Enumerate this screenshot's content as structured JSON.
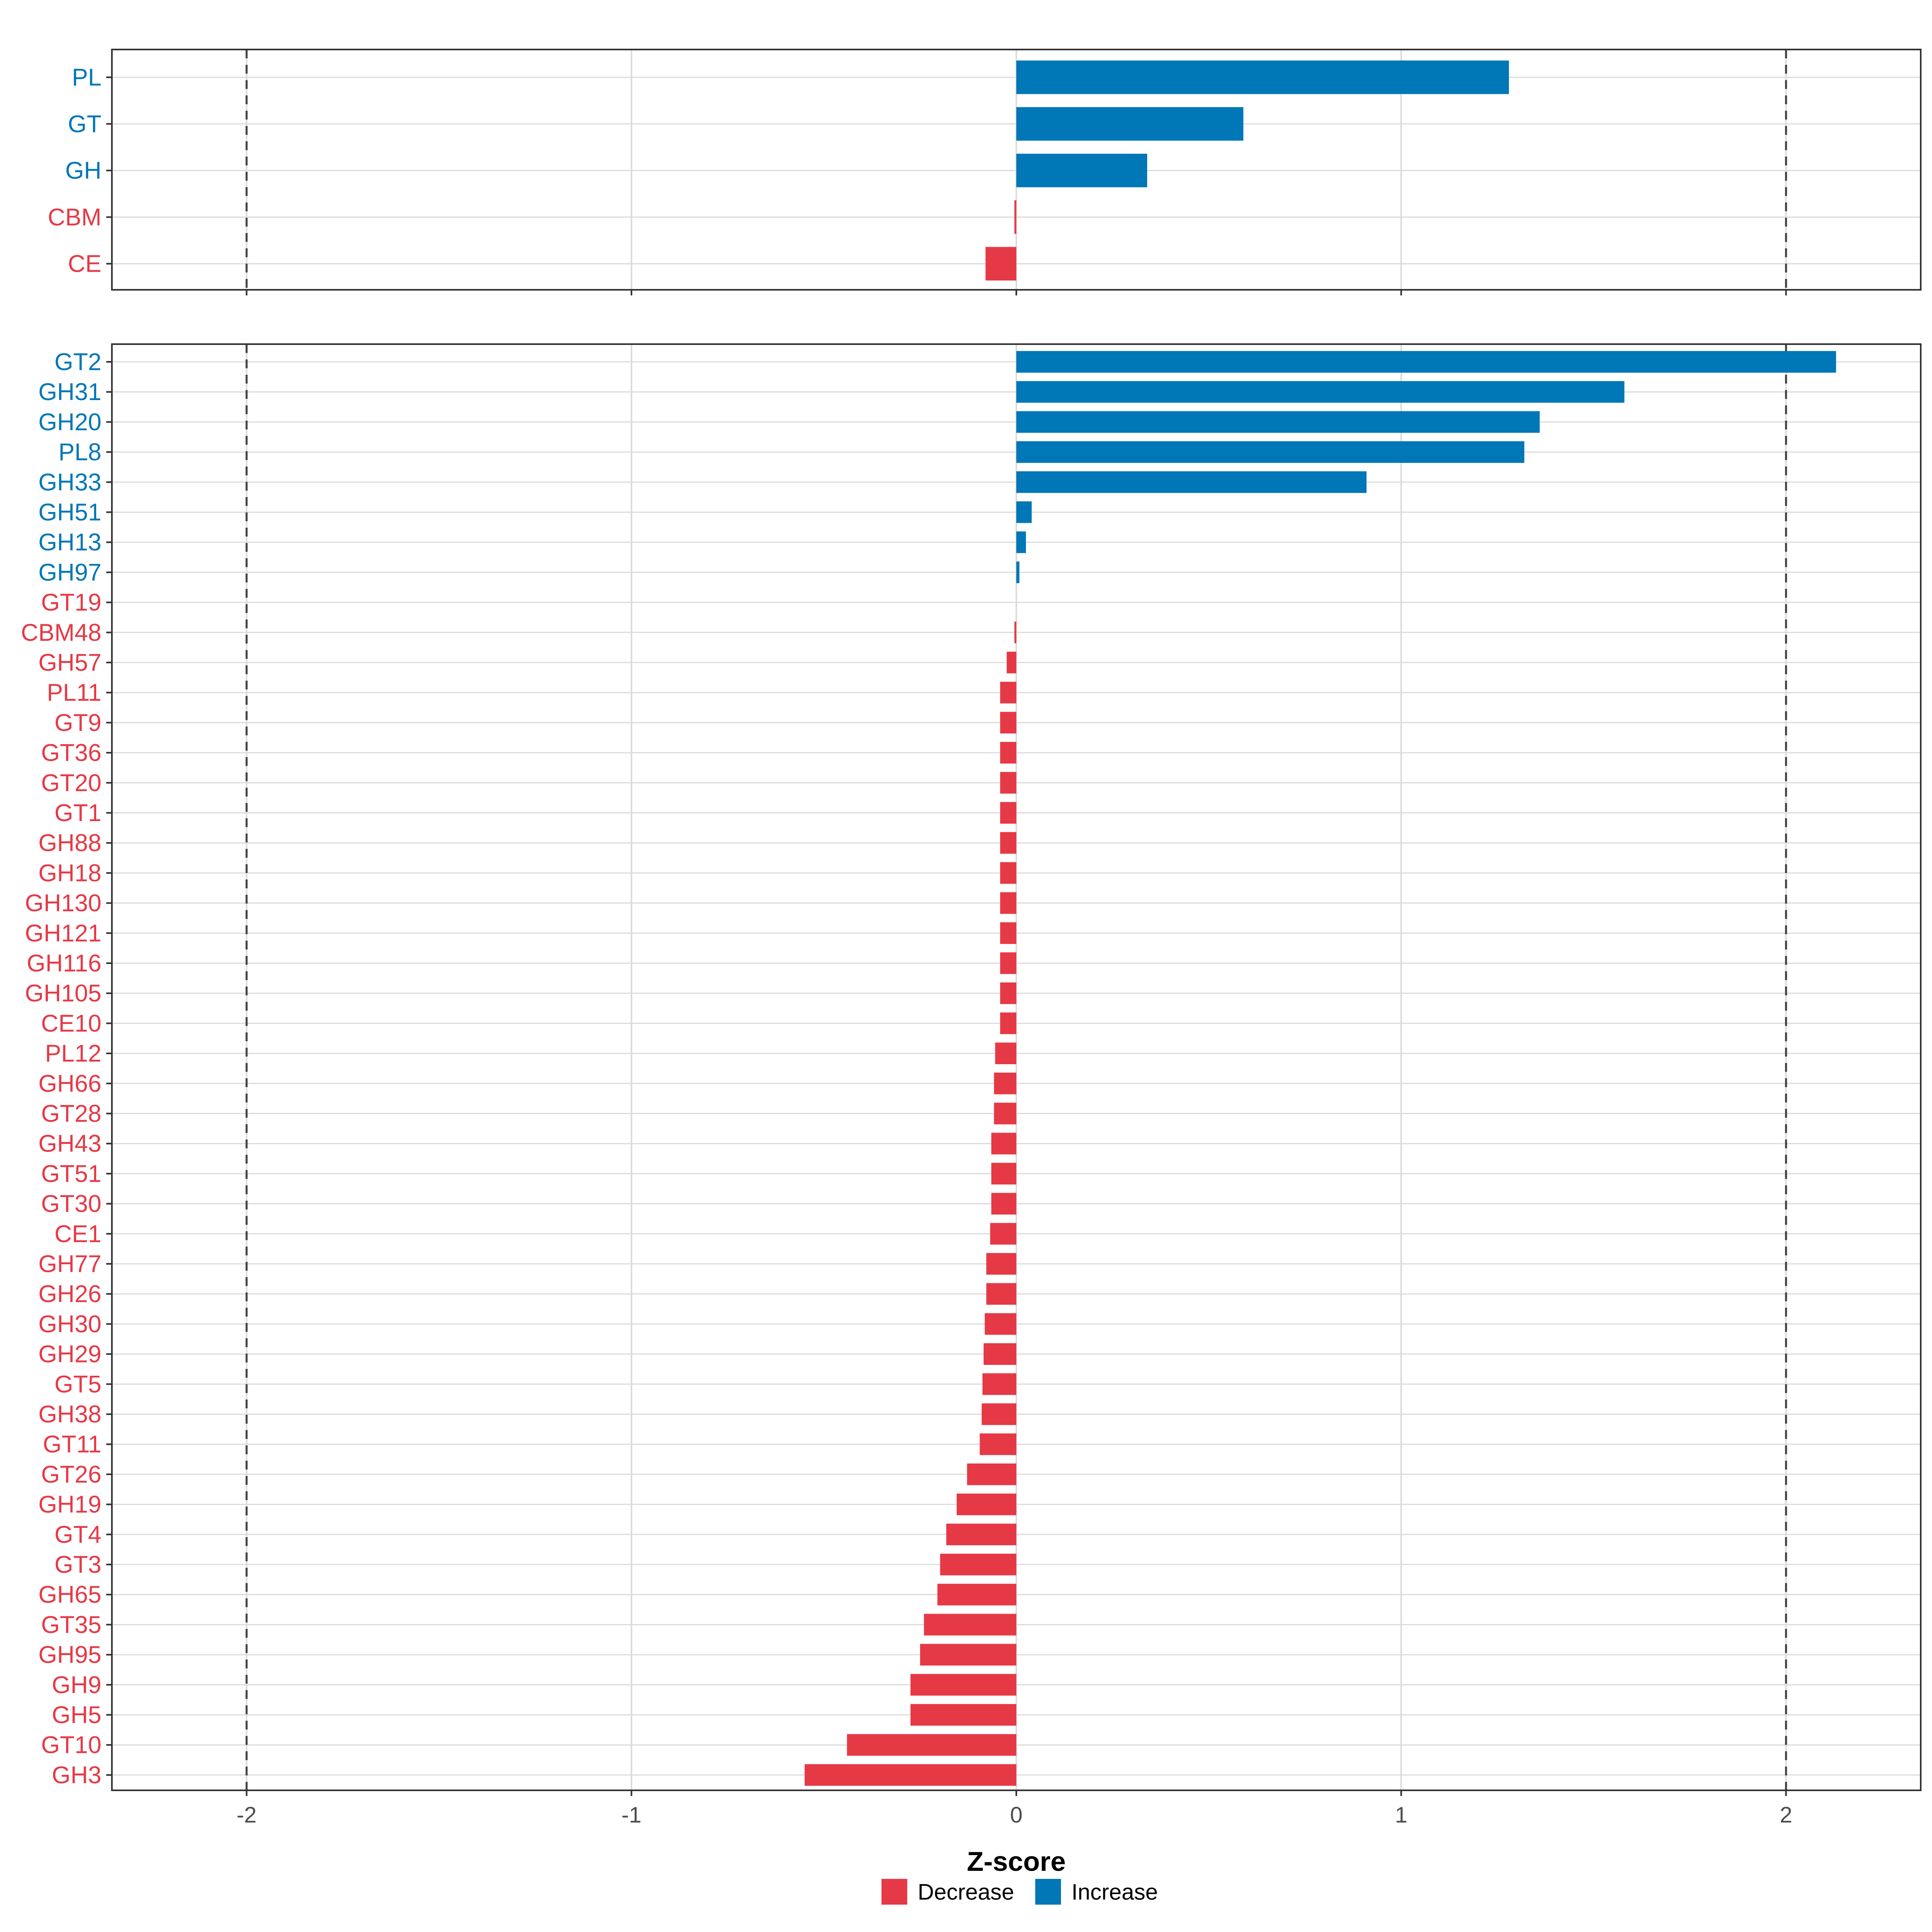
{
  "colors": {
    "Decrease": "#E63946",
    "Increase": "#0077B6"
  },
  "chart_data": [
    {
      "type": "bar",
      "orientation": "horizontal",
      "panel": "family",
      "xlim": [
        -2.35,
        2.35
      ],
      "categories": [
        "PL",
        "GT",
        "GH",
        "CBM",
        "CE"
      ],
      "values": [
        1.28,
        0.59,
        0.34,
        -0.005,
        -0.08
      ],
      "groups": [
        "Increase",
        "Increase",
        "Increase",
        "Decrease",
        "Decrease"
      ],
      "reference_lines": [
        -2,
        2
      ]
    },
    {
      "type": "bar",
      "orientation": "horizontal",
      "panel": "subfamily",
      "xlim": [
        -2.35,
        2.35
      ],
      "categories": [
        "GT2",
        "GH31",
        "GH20",
        "PL8",
        "GH33",
        "GH51",
        "GH13",
        "GH97",
        "GT19",
        "CBM48",
        "GH57",
        "PL11",
        "GT9",
        "GT36",
        "GT20",
        "GT1",
        "GH88",
        "GH18",
        "GH130",
        "GH121",
        "GH116",
        "GH105",
        "CE10",
        "PL12",
        "GH66",
        "GT28",
        "GH43",
        "GT51",
        "GT30",
        "CE1",
        "GH77",
        "GH26",
        "GH30",
        "GH29",
        "GT5",
        "GH38",
        "GT11",
        "GT26",
        "GH19",
        "GT4",
        "GT3",
        "GH65",
        "GT35",
        "GH95",
        "GH9",
        "GH5",
        "GT10",
        "GH3"
      ],
      "values": [
        2.13,
        1.58,
        1.36,
        1.32,
        0.91,
        0.04,
        0.025,
        0.008,
        0,
        -0.005,
        -0.025,
        -0.042,
        -0.042,
        -0.042,
        -0.042,
        -0.042,
        -0.042,
        -0.042,
        -0.042,
        -0.042,
        -0.042,
        -0.042,
        -0.042,
        -0.055,
        -0.058,
        -0.058,
        -0.065,
        -0.065,
        -0.065,
        -0.068,
        -0.078,
        -0.078,
        -0.082,
        -0.085,
        -0.088,
        -0.09,
        -0.095,
        -0.128,
        -0.155,
        -0.182,
        -0.198,
        -0.205,
        -0.24,
        -0.25,
        -0.275,
        -0.275,
        -0.44,
        -0.55
      ],
      "groups": [
        "Increase",
        "Increase",
        "Increase",
        "Increase",
        "Increase",
        "Increase",
        "Increase",
        "Increase",
        "Decrease",
        "Decrease",
        "Decrease",
        "Decrease",
        "Decrease",
        "Decrease",
        "Decrease",
        "Decrease",
        "Decrease",
        "Decrease",
        "Decrease",
        "Decrease",
        "Decrease",
        "Decrease",
        "Decrease",
        "Decrease",
        "Decrease",
        "Decrease",
        "Decrease",
        "Decrease",
        "Decrease",
        "Decrease",
        "Decrease",
        "Decrease",
        "Decrease",
        "Decrease",
        "Decrease",
        "Decrease",
        "Decrease",
        "Decrease",
        "Decrease",
        "Decrease",
        "Decrease",
        "Decrease",
        "Decrease",
        "Decrease",
        "Decrease",
        "Decrease",
        "Decrease",
        "Decrease"
      ],
      "reference_lines": [
        -2,
        2
      ]
    }
  ],
  "x_axis": {
    "ticks": [
      -2,
      -1,
      0,
      1,
      2
    ],
    "tick_labels": [
      "-2",
      "-1",
      "0",
      "1",
      "2"
    ],
    "label": "Z-score"
  },
  "legend": {
    "position": "bottom",
    "items": [
      "Decrease",
      "Increase"
    ]
  }
}
